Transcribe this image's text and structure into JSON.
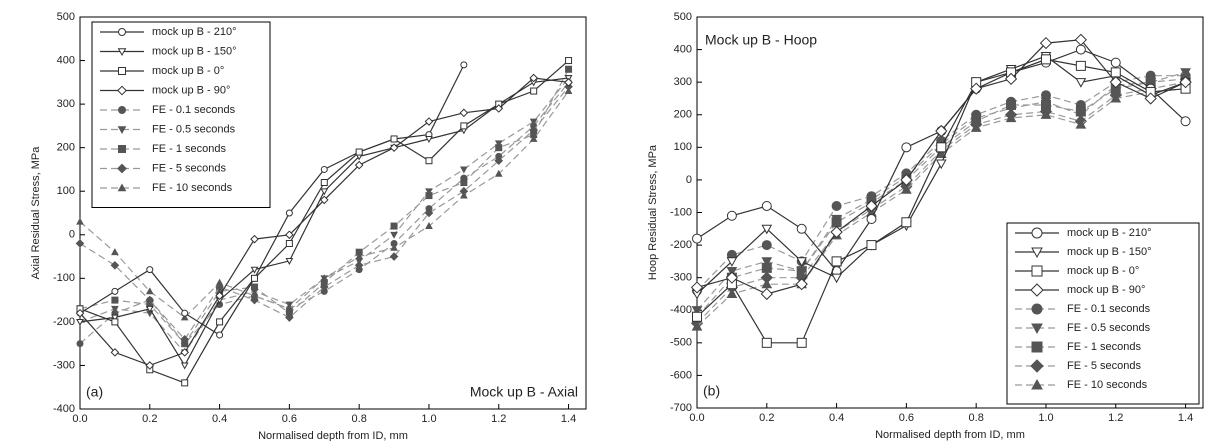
{
  "chart_data": [
    {
      "type": "line",
      "panel_label": "(a)",
      "annotation": "Mock up B - Axial",
      "x_label": "Normalised depth from ID, mm",
      "y_label": "Axial Residual Stress, MPa",
      "legend": "upper left",
      "x": [
        0,
        0.1,
        0.2,
        0.3,
        0.4,
        0.5,
        0.6,
        0.7,
        0.8,
        0.9,
        1.0,
        1.1,
        1.2,
        1.3,
        1.4
      ],
      "xlim": [
        0,
        1.45
      ],
      "ylim": [
        -400,
        500
      ],
      "xticks": [
        {
          "value": 0,
          "label": "0.0"
        },
        0.2,
        0.4,
        0.6,
        0.8,
        {
          "value": 1,
          "label": "1.0"
        },
        1.2,
        1.4
      ],
      "yticks": [
        -400,
        -300,
        -200,
        -100,
        0,
        100,
        200,
        300,
        400,
        500
      ],
      "series": [
        {
          "name": "mock up B - 210°",
          "color": "#333333",
          "marker": "circle",
          "line_style": "solid",
          "values": [
            -180,
            -130,
            -80,
            -180,
            -230,
            -100,
            50,
            150,
            190,
            220,
            230,
            390,
            null,
            null,
            null
          ]
        },
        {
          "name": "mock up B - 150°",
          "color": "#333333",
          "marker": "triangle-down",
          "line_style": "solid",
          "values": [
            -200,
            -190,
            -170,
            -300,
            -150,
            -80,
            -60,
            100,
            180,
            200,
            220,
            240,
            300,
            350,
            360
          ]
        },
        {
          "name": "mock up B - 0°",
          "color": "#333333",
          "marker": "square",
          "line_style": "solid",
          "values": [
            -170,
            -200,
            -310,
            -340,
            -200,
            -100,
            -20,
            120,
            190,
            220,
            170,
            250,
            300,
            330,
            400
          ]
        },
        {
          "name": "mock up B - 90°",
          "color": "#333333",
          "marker": "diamond",
          "line_style": "solid",
          "values": [
            -180,
            -270,
            -300,
            -270,
            -140,
            -10,
            0,
            80,
            160,
            200,
            260,
            280,
            290,
            360,
            350
          ]
        },
        {
          "name": "FE - 0.1 seconds",
          "color": "#999999",
          "marker": "circle-filled",
          "line_style": "dashed",
          "values": [
            -250,
            -180,
            -150,
            -250,
            -160,
            -140,
            -170,
            -130,
            -80,
            -20,
            60,
            130,
            180,
            250,
            350
          ]
        },
        {
          "name": "FE - 0.5 seconds",
          "color": "#999999",
          "marker": "triangle-down-filled",
          "line_style": "dashed",
          "values": [
            -200,
            -170,
            -180,
            -270,
            -150,
            -130,
            -160,
            -100,
            -60,
            0,
            100,
            150,
            210,
            260,
            360
          ]
        },
        {
          "name": "FE - 1 seconds",
          "color": "#999999",
          "marker": "square-filled",
          "line_style": "dashed",
          "values": [
            -170,
            -150,
            -160,
            -250,
            -130,
            -120,
            -180,
            -110,
            -40,
            20,
            90,
            120,
            200,
            230,
            380
          ]
        },
        {
          "name": "FE - 5 seconds",
          "color": "#999999",
          "marker": "diamond-filled",
          "line_style": "dashed",
          "values": [
            -20,
            -70,
            -150,
            -240,
            -120,
            -150,
            -190,
            -120,
            -70,
            -50,
            50,
            100,
            170,
            240,
            340
          ]
        },
        {
          "name": "FE - 10 seconds",
          "color": "#999999",
          "marker": "triangle-up-filled",
          "line_style": "dashed",
          "values": [
            30,
            -40,
            -130,
            -190,
            -110,
            -140,
            -170,
            -100,
            -50,
            -30,
            20,
            90,
            140,
            220,
            330
          ]
        }
      ]
    },
    {
      "type": "line",
      "panel_label": "(b)",
      "annotation": "Mock up B - Hoop",
      "x_label": "Normalised depth from ID, mm",
      "y_label": "Hoop Residual Stress, MPa",
      "legend": "lower right",
      "x": [
        0,
        0.1,
        0.2,
        0.3,
        0.4,
        0.5,
        0.6,
        0.7,
        0.8,
        0.9,
        1.0,
        1.1,
        1.2,
        1.3,
        1.4
      ],
      "xlim": [
        0,
        1.45
      ],
      "ylim": [
        -700,
        500
      ],
      "xticks": [
        {
          "value": 0,
          "label": "0.0"
        },
        0.2,
        0.4,
        0.6,
        0.8,
        {
          "value": 1,
          "label": "1.0"
        },
        1.2,
        1.4
      ],
      "yticks": [
        -700,
        -600,
        -500,
        -400,
        -300,
        -200,
        -100,
        0,
        100,
        200,
        300,
        400,
        500
      ],
      "series": [
        {
          "name": "mock up B - 210°",
          "color": "#333333",
          "marker": "circle",
          "line_style": "solid",
          "values": [
            -180,
            -110,
            -80,
            -150,
            -280,
            -120,
            100,
            150,
            280,
            330,
            360,
            400,
            360,
            280,
            180
          ]
        },
        {
          "name": "mock up B - 150°",
          "color": "#333333",
          "marker": "triangle-down",
          "line_style": "solid",
          "values": [
            -350,
            -250,
            -150,
            -250,
            -300,
            -200,
            -140,
            50,
            300,
            340,
            380,
            300,
            320,
            260,
            300
          ]
        },
        {
          "name": "mock up B - 0°",
          "color": "#333333",
          "marker": "square",
          "line_style": "solid",
          "values": [
            -420,
            -320,
            -500,
            -500,
            -250,
            -200,
            -130,
            100,
            300,
            330,
            370,
            350,
            330,
            270,
            280
          ]
        },
        {
          "name": "mock up B - 90°",
          "color": "#333333",
          "marker": "diamond",
          "line_style": "solid",
          "values": [
            -330,
            -300,
            -350,
            -320,
            -160,
            -80,
            0,
            150,
            280,
            310,
            420,
            430,
            300,
            250,
            300
          ]
        },
        {
          "name": "FE - 0.1 seconds",
          "color": "#999999",
          "marker": "circle-filled",
          "line_style": "dashed",
          "values": [
            -340,
            -230,
            -200,
            -250,
            -80,
            -50,
            20,
            120,
            200,
            240,
            260,
            230,
            300,
            320,
            320
          ]
        },
        {
          "name": "FE - 0.5 seconds",
          "color": "#999999",
          "marker": "triangle-down-filled",
          "line_style": "dashed",
          "values": [
            -400,
            -280,
            -250,
            -280,
            -120,
            -60,
            10,
            110,
            190,
            220,
            240,
            200,
            290,
            300,
            330
          ]
        },
        {
          "name": "FE - 1 seconds",
          "color": "#999999",
          "marker": "square-filled",
          "line_style": "dashed",
          "values": [
            -420,
            -300,
            -270,
            -280,
            -130,
            -70,
            0,
            100,
            180,
            230,
            230,
            210,
            280,
            300,
            310
          ]
        },
        {
          "name": "FE - 5 seconds",
          "color": "#999999",
          "marker": "diamond-filled",
          "line_style": "dashed",
          "values": [
            -440,
            -330,
            -300,
            -300,
            -160,
            -90,
            -20,
            90,
            170,
            200,
            210,
            180,
            260,
            280,
            300
          ]
        },
        {
          "name": "FE - 10 seconds",
          "color": "#999999",
          "marker": "triangle-up-filled",
          "line_style": "dashed",
          "values": [
            -450,
            -350,
            -320,
            -320,
            -170,
            -100,
            -30,
            80,
            160,
            190,
            200,
            170,
            250,
            270,
            280
          ]
        }
      ]
    }
  ]
}
